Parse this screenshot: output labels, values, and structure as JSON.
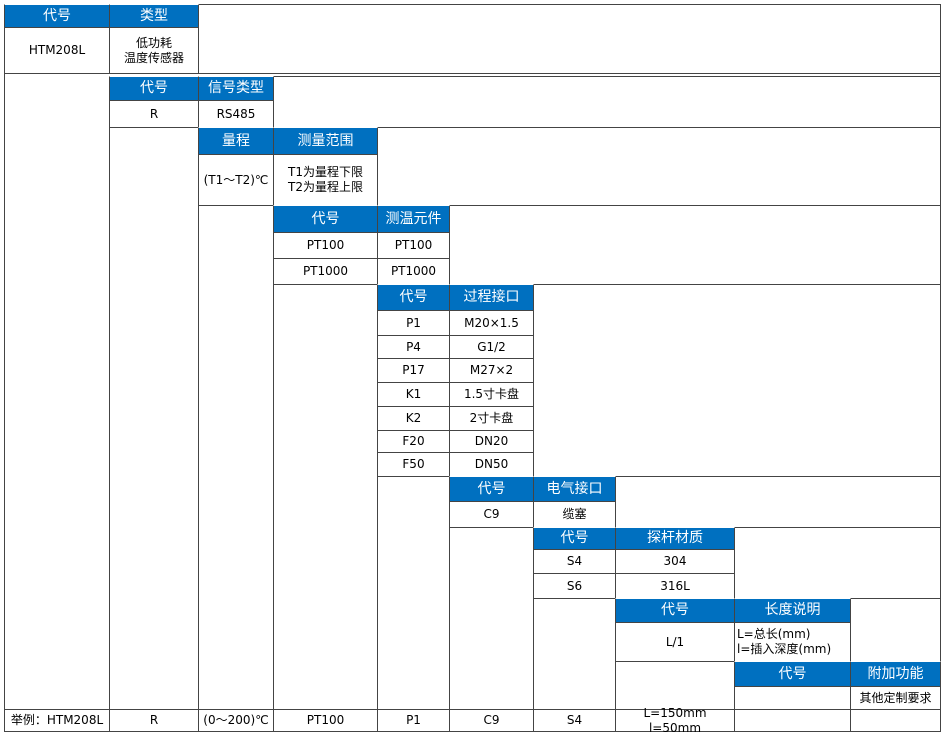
{
  "sections": [
    {
      "headers": [
        "代号",
        "类型"
      ],
      "rows": [
        [
          "HTM208L",
          "低功耗\n温度传感器"
        ]
      ]
    },
    {
      "headers": [
        "代号",
        "信号类型"
      ],
      "rows": [
        [
          "R",
          "RS485"
        ]
      ]
    },
    {
      "headers": [
        "量程",
        "测量范围"
      ],
      "rows": [
        [
          "(T1～T2)℃",
          "T1为量程下限\nT2为量程上限"
        ]
      ]
    },
    {
      "headers": [
        "代号",
        "测温元件"
      ],
      "rows": [
        [
          "PT100",
          "PT100"
        ],
        [
          "PT1000",
          "PT1000"
        ]
      ]
    },
    {
      "headers": [
        "代号",
        "过程接口"
      ],
      "rows": [
        [
          "P1",
          "M20×1.5"
        ],
        [
          "P4",
          "G1/2"
        ],
        [
          "P17",
          "M27×2"
        ],
        [
          "K1",
          "1.5寸卡盘"
        ],
        [
          "K2",
          "2寸卡盘"
        ],
        [
          "F20",
          "DN20"
        ],
        [
          "F50",
          "DN50"
        ]
      ]
    },
    {
      "headers": [
        "代号",
        "电气接口"
      ],
      "rows": [
        [
          "C9",
          "缆塞"
        ]
      ]
    },
    {
      "headers": [
        "代号",
        "探杆材质"
      ],
      "rows": [
        [
          "S4",
          "304"
        ],
        [
          "S6",
          "316L"
        ]
      ]
    },
    {
      "headers": [
        "代号",
        "长度说明"
      ],
      "rows": [
        [
          "L/1",
          "L=总长(mm)\nl=插入深度(mm)"
        ]
      ]
    },
    {
      "headers": [
        "代号",
        "附加功能"
      ],
      "rows": [
        [
          null,
          "其他定制要求"
        ]
      ]
    }
  ],
  "example": [
    "举例：HTM208L",
    "R",
    "(0～200)℃",
    "PT100",
    "P1",
    "C9",
    "S4",
    "L=150mm l=50mm"
  ]
}
